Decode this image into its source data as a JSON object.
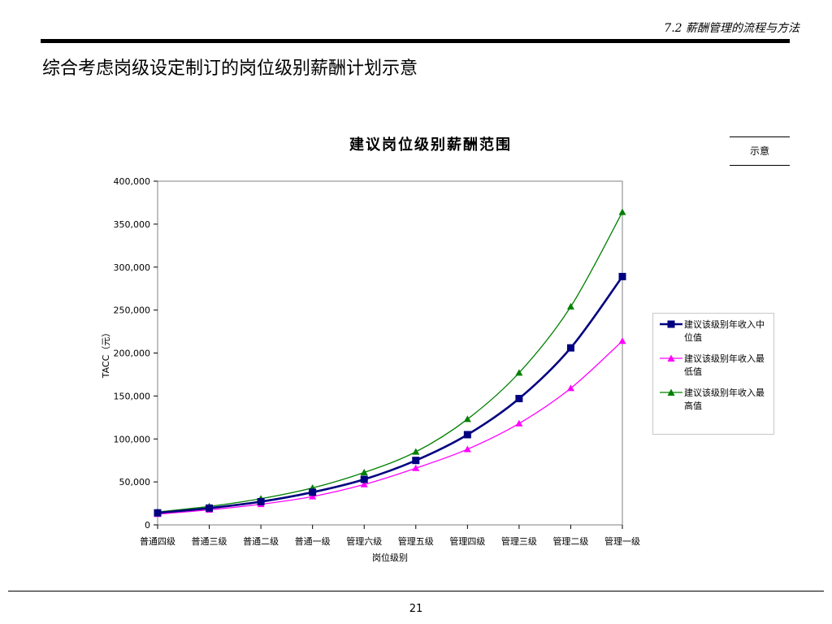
{
  "header": {
    "section_label": "7.2 薪酬管理的流程与方法",
    "page_title": "综合考虑岗级设定制订的岗位级别薪酬计划示意"
  },
  "tag": "示意",
  "footer": {
    "page_number": "21"
  },
  "chart_data": {
    "type": "line",
    "title": "建议岗位级别薪酬范围",
    "xlabel": "岗位级别",
    "ylabel": "TACC（元）",
    "ylim": [
      0,
      400000
    ],
    "yticks": [
      0,
      50000,
      100000,
      150000,
      200000,
      250000,
      300000,
      350000,
      400000
    ],
    "ytick_labels": [
      "0",
      "50,000",
      "100,000",
      "150,000",
      "200,000",
      "250,000",
      "300,000",
      "350,000",
      "400,000"
    ],
    "categories": [
      "普通四级",
      "普通三级",
      "普通二级",
      "普通一级",
      "管理六级",
      "管理五级",
      "管理四级",
      "管理三级",
      "管理二级",
      "管理一级"
    ],
    "legend_position": "right",
    "grid": false,
    "series": [
      {
        "name": "建议该级别年收入中位值",
        "color": "#000080",
        "marker": "square",
        "values": [
          14000,
          19500,
          27000,
          38000,
          53000,
          75000,
          105000,
          147000,
          206000,
          289000
        ]
      },
      {
        "name": "建议该级别年收入最低值",
        "color": "#ff00ff",
        "marker": "triangle",
        "values": [
          12500,
          17500,
          24000,
          33000,
          47000,
          66000,
          88000,
          118000,
          159000,
          214000
        ]
      },
      {
        "name": "建议该级别年收入最高值",
        "color": "#008000",
        "marker": "triangle",
        "values": [
          15000,
          21500,
          30500,
          43000,
          61000,
          85000,
          123000,
          177000,
          254000,
          364000
        ]
      }
    ]
  }
}
